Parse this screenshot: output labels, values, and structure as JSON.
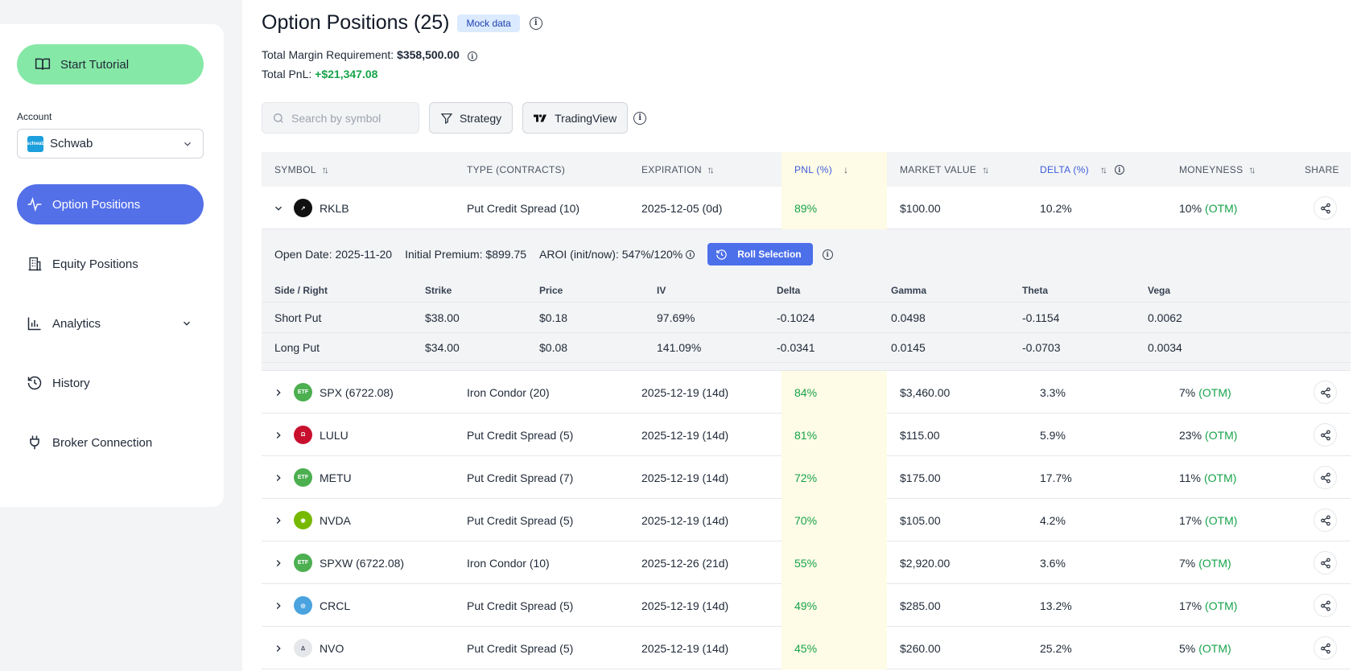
{
  "sidebar": {
    "tutorial_label": "Start Tutorial",
    "account_label": "Account",
    "account_value": "Schwab",
    "nav": [
      {
        "label": "Option Positions",
        "icon": "activity-icon",
        "active": true
      },
      {
        "label": "Equity Positions",
        "icon": "building-icon"
      },
      {
        "label": "Analytics",
        "icon": "bar-chart-icon"
      },
      {
        "label": "History",
        "icon": "history-icon"
      },
      {
        "label": "Broker Connection",
        "icon": "plug-icon"
      }
    ]
  },
  "header": {
    "title": "Option Positions (25)",
    "badge": "Mock data",
    "margin_label": "Total Margin Requirement:",
    "margin_value": "$358,500.00",
    "pnl_label": "Total PnL:",
    "pnl_value": "+$21,347.08"
  },
  "toolbar": {
    "search_placeholder": "Search by symbol",
    "strategy_label": "Strategy",
    "tradingview_label": "TradingView"
  },
  "table": {
    "headers": {
      "symbol": "SYMBOL",
      "type": "TYPE (CONTRACTS)",
      "expiration": "EXPIRATION",
      "pnl": "PNL (%)",
      "market_value": "MARKET VALUE",
      "delta": "DELTA (%)",
      "moneyness": "MONEYNESS",
      "share": "SHARE"
    },
    "rows": [
      {
        "symbol": "RKLB",
        "type": "Put Credit Spread (10)",
        "expiration": "2025-12-05 (0d)",
        "pnl": "89%",
        "market_value": "$100.00",
        "delta": "10.2%",
        "moneyness_pct": "10%",
        "moneyness_tag": "(OTM)",
        "icon_color": "#111111",
        "icon_text": "↗",
        "expanded": true
      },
      {
        "symbol": "SPX (6722.08)",
        "type": "Iron Condor (20)",
        "expiration": "2025-12-19 (14d)",
        "pnl": "84%",
        "market_value": "$3,460.00",
        "delta": "3.3%",
        "moneyness_pct": "7%",
        "moneyness_tag": "(OTM)",
        "icon_color": "#4caf50",
        "icon_text": "ETF"
      },
      {
        "symbol": "LULU",
        "type": "Put Credit Spread (5)",
        "expiration": "2025-12-19 (14d)",
        "pnl": "81%",
        "market_value": "$115.00",
        "delta": "5.9%",
        "moneyness_pct": "23%",
        "moneyness_tag": "(OTM)",
        "icon_color": "#c8102e",
        "icon_text": "Ω"
      },
      {
        "symbol": "METU",
        "type": "Put Credit Spread (7)",
        "expiration": "2025-12-19 (14d)",
        "pnl": "72%",
        "market_value": "$175.00",
        "delta": "17.7%",
        "moneyness_pct": "11%",
        "moneyness_tag": "(OTM)",
        "icon_color": "#4caf50",
        "icon_text": "ETF"
      },
      {
        "symbol": "NVDA",
        "type": "Put Credit Spread (5)",
        "expiration": "2025-12-19 (14d)",
        "pnl": "70%",
        "market_value": "$105.00",
        "delta": "4.2%",
        "moneyness_pct": "17%",
        "moneyness_tag": "(OTM)",
        "icon_color": "#76b900",
        "icon_text": "◉"
      },
      {
        "symbol": "SPXW (6722.08)",
        "type": "Iron Condor (10)",
        "expiration": "2025-12-26 (21d)",
        "pnl": "55%",
        "market_value": "$2,920.00",
        "delta": "3.6%",
        "moneyness_pct": "7%",
        "moneyness_tag": "(OTM)",
        "icon_color": "#4caf50",
        "icon_text": "ETF"
      },
      {
        "symbol": "CRCL",
        "type": "Put Credit Spread (5)",
        "expiration": "2025-12-19 (14d)",
        "pnl": "49%",
        "market_value": "$285.00",
        "delta": "13.2%",
        "moneyness_pct": "17%",
        "moneyness_tag": "(OTM)",
        "icon_color": "#4aa3df",
        "icon_text": "◎"
      },
      {
        "symbol": "NVO",
        "type": "Put Credit Spread (5)",
        "expiration": "2025-12-19 (14d)",
        "pnl": "45%",
        "market_value": "$260.00",
        "delta": "25.2%",
        "moneyness_pct": "5%",
        "moneyness_tag": "(OTM)",
        "icon_color": "#e5e7eb",
        "icon_text": "ᐃ"
      }
    ]
  },
  "detail": {
    "open_date": "Open Date: 2025-11-20",
    "initial_premium": "Initial Premium: $899.75",
    "aroi": "AROI (init/now): 547%/120%",
    "roll_label": "Roll Selection",
    "headers": [
      "Side / Right",
      "Strike",
      "Price",
      "IV",
      "Delta",
      "Gamma",
      "Theta",
      "Vega"
    ],
    "legs": [
      [
        "Short Put",
        "$38.00",
        "$0.18",
        "97.69%",
        "-0.1024",
        "0.0498",
        "-0.1154",
        "0.0062"
      ],
      [
        "Long Put",
        "$34.00",
        "$0.08",
        "141.09%",
        "-0.0341",
        "0.0145",
        "-0.0703",
        "0.0034"
      ]
    ]
  }
}
